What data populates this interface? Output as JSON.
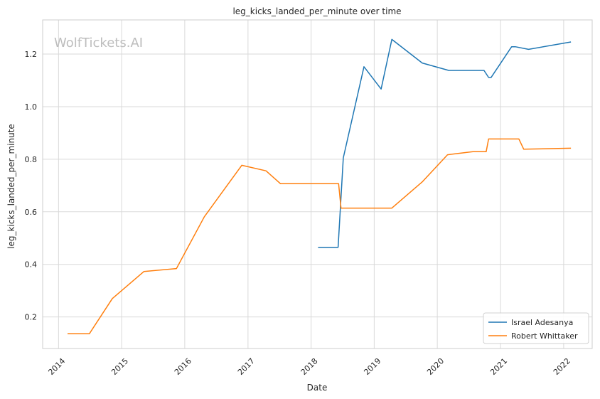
{
  "chart_data": {
    "type": "line",
    "title": "leg_kicks_landed_per_minute over time",
    "xlabel": "Date",
    "ylabel": "leg_kicks_landed_per_minute",
    "watermark": "WolfTickets.AI",
    "x_ticks": [
      "2014",
      "2015",
      "2016",
      "2017",
      "2018",
      "2019",
      "2020",
      "2021",
      "2022"
    ],
    "y_ticks": [
      "0.2",
      "0.4",
      "0.6",
      "0.8",
      "1.0",
      "1.2"
    ],
    "xlim": [
      "2013-10-01",
      "2022-06-15"
    ],
    "ylim": [
      0.08,
      1.33
    ],
    "grid": true,
    "legend_position": "bottom-right",
    "colors": {
      "series_0": "#1f77b4",
      "series_1": "#ff7f0e",
      "grid": "#d9d9d9",
      "frame": "#cccccc"
    },
    "series": [
      {
        "name": "Israel Adesanya",
        "points": [
          [
            "2018-02-10",
            0.465
          ],
          [
            "2018-06-06",
            0.465
          ],
          [
            "2018-07-06",
            0.805
          ],
          [
            "2018-11-03",
            1.152
          ],
          [
            "2019-02-10",
            1.067
          ],
          [
            "2019-04-13",
            1.256
          ],
          [
            "2019-10-06",
            1.166
          ],
          [
            "2020-03-07",
            1.138
          ],
          [
            "2020-09-27",
            1.138
          ],
          [
            "2020-10-24",
            1.111
          ],
          [
            "2020-11-07",
            1.111
          ],
          [
            "2021-03-06",
            1.228
          ],
          [
            "2021-03-27",
            1.228
          ],
          [
            "2021-06-12",
            1.218
          ],
          [
            "2022-02-12",
            1.246
          ]
        ]
      },
      {
        "name": "Robert Whittaker",
        "points": [
          [
            "2014-02-22",
            0.136
          ],
          [
            "2014-06-28",
            0.136
          ],
          [
            "2014-11-08",
            0.27
          ],
          [
            "2015-05-10",
            0.373
          ],
          [
            "2015-11-14",
            0.384
          ],
          [
            "2016-04-23",
            0.581
          ],
          [
            "2016-11-26",
            0.777
          ],
          [
            "2017-04-15",
            0.756
          ],
          [
            "2017-07-08",
            0.707
          ],
          [
            "2018-06-09",
            0.707
          ],
          [
            "2018-06-23",
            0.614
          ],
          [
            "2019-04-13",
            0.614
          ],
          [
            "2019-10-06",
            0.714
          ],
          [
            "2020-02-29",
            0.817
          ],
          [
            "2020-07-25",
            0.829
          ],
          [
            "2020-10-10",
            0.829
          ],
          [
            "2020-10-24",
            0.877
          ],
          [
            "2021-04-17",
            0.877
          ],
          [
            "2021-05-15",
            0.838
          ],
          [
            "2022-02-12",
            0.842
          ]
        ]
      }
    ]
  }
}
